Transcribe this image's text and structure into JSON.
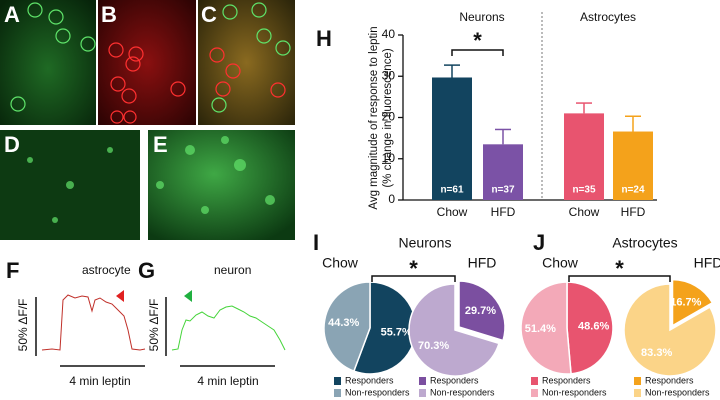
{
  "panel_labels": [
    "A",
    "B",
    "C",
    "D",
    "E",
    "F",
    "G"
  ],
  "traces": [
    {
      "label": "astrocyte",
      "scale_y": "50% ΔF/F",
      "scale_x": "4 min leptin"
    },
    {
      "label": "neuron",
      "scale_y": "50% ΔF/F",
      "scale_x": "4 min leptin"
    }
  ],
  "chart_data": [
    {
      "type": "bar",
      "panel": "H",
      "y_label": [
        "Avg magnitude of response to leptin",
        "(% change in fluorescence)"
      ],
      "groups": [
        "Neurons",
        "Astrocytes"
      ],
      "categories": [
        "Chow",
        "HFD",
        "Chow",
        "HFD"
      ],
      "values": [
        29.7,
        13.5,
        21,
        16.6
      ],
      "errors": [
        3,
        3.6,
        2.5,
        3.7
      ],
      "n_labels": [
        "n=61",
        "n=37",
        "n=35",
        "n=24"
      ],
      "colors": [
        "#12445f",
        "#7b52a6",
        "#e8546f",
        "#f4a21b"
      ],
      "annotation": "*",
      "ylim": [
        0,
        40
      ],
      "yticks": [
        0,
        10,
        20,
        30,
        40
      ]
    },
    {
      "type": "pie",
      "panel": "I",
      "title": "Neurons",
      "labels": [
        "Responders",
        "Non-responders"
      ],
      "annotation": "*",
      "series": [
        {
          "name": "Chow",
          "values": [
            55.7,
            44.3
          ],
          "value_labels": [
            "55.7%",
            "44.3%"
          ],
          "colors": [
            "#12445f",
            "#8aa4b4"
          ],
          "explode": false
        },
        {
          "name": "HFD",
          "values": [
            29.7,
            70.3
          ],
          "value_labels": [
            "29.7%",
            "70.3%"
          ],
          "colors": [
            "#7b4fa0",
            "#bda9cf"
          ],
          "explode": true
        }
      ]
    },
    {
      "type": "pie",
      "panel": "J",
      "title": "Astrocytes",
      "labels": [
        "Responders",
        "Non-responders"
      ],
      "annotation": "*",
      "series": [
        {
          "name": "Chow",
          "values": [
            48.6,
            51.4
          ],
          "value_labels": [
            "48.6%",
            "51.4%"
          ],
          "colors": [
            "#e8546f",
            "#f3a9b8"
          ],
          "explode": false
        },
        {
          "name": "HFD",
          "values": [
            16.7,
            83.3
          ],
          "value_labels": [
            "16.7%",
            "83.3%"
          ],
          "colors": [
            "#f4a21b",
            "#fbd488"
          ],
          "explode": true
        }
      ]
    }
  ]
}
